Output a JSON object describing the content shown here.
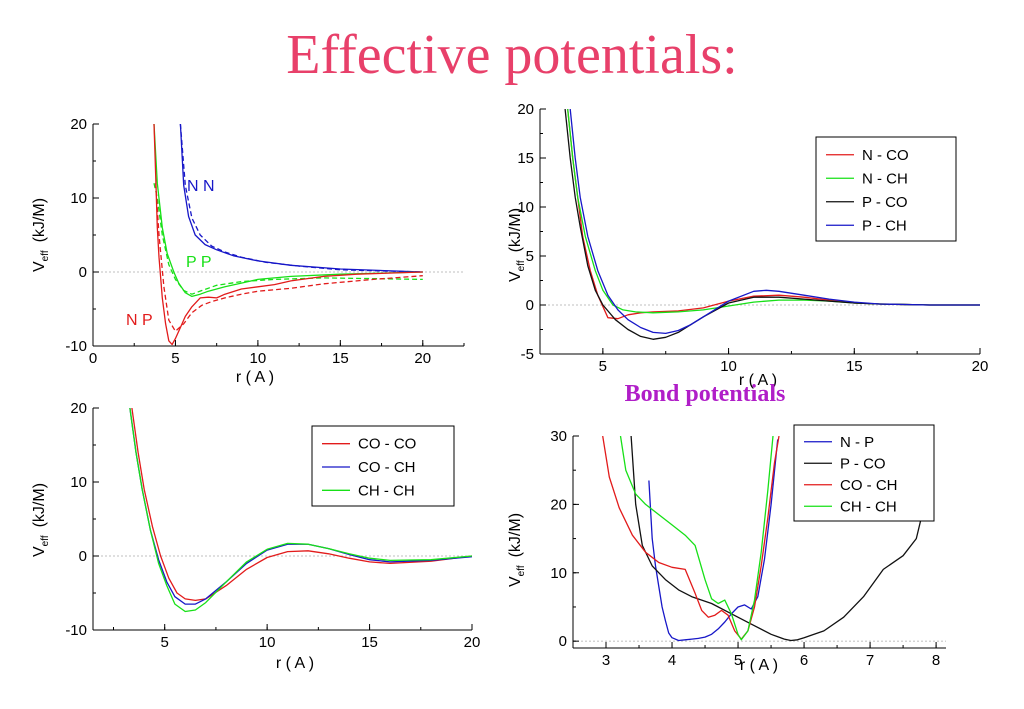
{
  "title": "Effective potentials:",
  "subtitle": "Bond potentials",
  "colors": {
    "title": "#e8406a",
    "subtitle": "#b01ec8",
    "red": "#e21b1b",
    "green": "#17e017",
    "blue": "#1717c8",
    "black": "#111111"
  },
  "chart_data": [
    {
      "type": "line",
      "xlabel": "r ( A )",
      "ylabel_main": "V",
      "ylabel_sub": "eff",
      "ylabel_unit": "(kJ/M)",
      "xlim": [
        0,
        22.5
      ],
      "ylim": [
        -10,
        20
      ],
      "xticks": [
        0,
        5,
        10,
        15,
        20
      ],
      "yticks": [
        -10,
        0,
        10,
        20
      ],
      "reference_line": 0,
      "series_labels": [
        "N N",
        "P P",
        "N P"
      ],
      "series": [
        {
          "label_index": 0,
          "color": "blue",
          "style": "solid",
          "x": [
            5.3,
            5.5,
            5.8,
            6.2,
            6.8,
            7.5,
            8.5,
            10,
            12,
            15,
            20
          ],
          "y": [
            20,
            11.7,
            7.5,
            5,
            3.7,
            3,
            2.2,
            1.5,
            0.9,
            0.4,
            0
          ]
        },
        {
          "label_index": 0,
          "color": "blue",
          "style": "dashed",
          "x": [
            5.3,
            5.6,
            6,
            6.5,
            7.2,
            8,
            9,
            10.5,
            12.5,
            15,
            20
          ],
          "y": [
            20,
            11.7,
            7.3,
            5,
            3.5,
            2.7,
            2,
            1.3,
            0.8,
            0.3,
            0
          ]
        },
        {
          "label_index": 1,
          "color": "green",
          "style": "solid",
          "x": [
            3.7,
            3.9,
            4.2,
            4.5,
            4.9,
            5.2,
            5.6,
            6,
            6.5,
            7,
            8,
            9,
            10,
            12,
            15,
            20
          ],
          "y": [
            20,
            12,
            6,
            2.5,
            0,
            -1.5,
            -2.8,
            -3.3,
            -3,
            -2.6,
            -2,
            -1.5,
            -1,
            -0.6,
            -0.3,
            0
          ]
        },
        {
          "label_index": 1,
          "color": "green",
          "style": "dashed",
          "x": [
            3.7,
            3.9,
            4.2,
            4.6,
            5,
            5.5,
            6,
            6.6,
            7.5,
            9,
            11,
            14,
            20
          ],
          "y": [
            12,
            10,
            5,
            1,
            -1,
            -2.5,
            -3,
            -2.5,
            -1.8,
            -1.3,
            -1,
            -0.8,
            -1
          ]
        },
        {
          "label_index": 2,
          "color": "red",
          "style": "solid",
          "x": [
            3.7,
            3.8,
            3.9,
            4,
            4.2,
            4.4,
            4.6,
            4.8,
            5,
            5.3,
            5.6,
            6,
            6.5,
            7,
            7.5,
            8,
            9,
            10,
            11,
            12,
            14,
            16,
            20
          ],
          "y": [
            20,
            13,
            6,
            2,
            -3.5,
            -7,
            -9.3,
            -9.8,
            -9,
            -7.5,
            -6,
            -4.7,
            -3.5,
            -3.4,
            -3.5,
            -3,
            -2.3,
            -2,
            -1.7,
            -1.2,
            -0.6,
            -0.3,
            0
          ]
        },
        {
          "label_index": 2,
          "color": "red",
          "style": "dashed",
          "x": [
            3.8,
            4,
            4.3,
            4.6,
            5,
            5.5,
            6,
            6.6,
            7.2,
            8,
            9,
            10,
            12,
            14,
            17,
            20
          ],
          "y": [
            12,
            5,
            -2,
            -6.5,
            -8,
            -7,
            -5.5,
            -4.5,
            -4,
            -3.5,
            -3,
            -2.6,
            -2.2,
            -1.6,
            -1,
            -0.5
          ]
        }
      ]
    },
    {
      "type": "line",
      "xlabel": "r ( A )",
      "ylabel_main": "V",
      "ylabel_sub": "eff",
      "ylabel_unit": "(kJ/M)",
      "xlim": [
        2.5,
        20
      ],
      "ylim": [
        -5,
        20
      ],
      "xticks": [
        5,
        10,
        15,
        20
      ],
      "yticks": [
        -5,
        0,
        5,
        10,
        15,
        20
      ],
      "reference_line": 0,
      "legend_position": "top-right",
      "series": [
        {
          "name": "N - CO",
          "color": "red",
          "x": [
            3.6,
            3.8,
            4,
            4.2,
            4.5,
            4.8,
            5.2,
            5.6,
            6,
            6.5,
            7,
            8,
            9,
            10,
            11,
            12,
            13,
            14,
            15,
            16,
            18,
            20
          ],
          "y": [
            20,
            15,
            11,
            7,
            3.5,
            1,
            -1.3,
            -1.4,
            -1,
            -0.8,
            -0.7,
            -0.6,
            -0.3,
            0.4,
            0.9,
            1,
            0.8,
            0.5,
            0.2,
            0.1,
            0,
            0
          ]
        },
        {
          "name": "N - CH",
          "color": "green",
          "x": [
            3.6,
            3.8,
            4,
            4.3,
            4.7,
            5,
            5.4,
            5.8,
            6.3,
            7,
            8,
            9,
            10,
            11,
            12,
            13,
            14,
            15,
            16,
            18,
            20
          ],
          "y": [
            20,
            15,
            11,
            7,
            3.5,
            1.5,
            0,
            -0.5,
            -0.7,
            -0.8,
            -0.7,
            -0.5,
            -0.1,
            0.3,
            0.5,
            0.5,
            0.4,
            0.2,
            0.1,
            0,
            0
          ]
        },
        {
          "name": "P - CO",
          "color": "black",
          "x": [
            3.5,
            3.7,
            3.9,
            4.1,
            4.4,
            4.7,
            5,
            5.5,
            6,
            6.5,
            7,
            7.5,
            8,
            8.5,
            9,
            9.5,
            10,
            11,
            12,
            13,
            14,
            15,
            16,
            18,
            20
          ],
          "y": [
            20,
            15,
            11,
            8,
            4,
            1.5,
            0,
            -1.5,
            -2.5,
            -3.2,
            -3.5,
            -3.3,
            -2.8,
            -2,
            -1.2,
            -0.5,
            0.2,
            0.8,
            0.8,
            0.6,
            0.4,
            0.2,
            0.1,
            0,
            0
          ]
        },
        {
          "name": "P - CH",
          "color": "blue",
          "x": [
            3.7,
            3.9,
            4.1,
            4.4,
            4.8,
            5.2,
            5.6,
            6,
            6.5,
            7,
            7.5,
            8,
            8.5,
            9,
            10,
            11,
            11.5,
            12,
            13,
            14,
            15,
            16,
            18,
            20
          ],
          "y": [
            20,
            15,
            11,
            7,
            3.5,
            1,
            -0.5,
            -1.5,
            -2.3,
            -2.8,
            -2.9,
            -2.6,
            -2,
            -1.2,
            0.4,
            1.4,
            1.5,
            1.4,
            1,
            0.6,
            0.3,
            0.1,
            0,
            0
          ]
        }
      ]
    },
    {
      "type": "line",
      "xlabel": "r ( A )",
      "ylabel_main": "V",
      "ylabel_sub": "eff",
      "ylabel_unit": "(kJ/M)",
      "xlim": [
        1.5,
        20
      ],
      "ylim": [
        -10,
        20
      ],
      "xticks": [
        5,
        10,
        15,
        20
      ],
      "yticks": [
        -10,
        0,
        10,
        20
      ],
      "reference_line": 0,
      "legend_position": "top-right",
      "series": [
        {
          "name": "CO - CO",
          "color": "red",
          "x": [
            3.4,
            3.7,
            4,
            4.4,
            4.8,
            5.2,
            5.6,
            6,
            6.5,
            7,
            8,
            9,
            10,
            11,
            12,
            13,
            14,
            15,
            16,
            18,
            20
          ],
          "y": [
            20,
            14,
            9,
            4,
            0,
            -3,
            -5,
            -5.8,
            -6,
            -5.8,
            -4,
            -1.8,
            -0.2,
            0.6,
            0.7,
            0.3,
            -0.3,
            -0.8,
            -1,
            -0.7,
            0
          ]
        },
        {
          "name": "CO - CH",
          "color": "blue",
          "x": [
            3.3,
            3.6,
            3.9,
            4.3,
            4.7,
            5.1,
            5.5,
            6,
            6.5,
            7,
            8,
            9,
            10,
            11,
            12,
            13,
            14,
            15,
            16,
            18,
            20
          ],
          "y": [
            20,
            14,
            9,
            3.5,
            -0.5,
            -3.5,
            -5.5,
            -6.5,
            -6.5,
            -5.8,
            -3.5,
            -1,
            0.8,
            1.6,
            1.6,
            1,
            0.2,
            -0.5,
            -0.8,
            -0.6,
            -0.1
          ]
        },
        {
          "name": "CH - CH",
          "color": "green",
          "x": [
            3.3,
            3.6,
            3.9,
            4.3,
            4.7,
            5.1,
            5.5,
            6,
            6.5,
            7,
            8,
            9,
            10,
            11,
            12,
            13,
            14,
            15,
            16,
            18,
            20
          ],
          "y": [
            20,
            14,
            9,
            3.5,
            -1,
            -4,
            -6.5,
            -7.5,
            -7.3,
            -6.3,
            -3.5,
            -0.8,
            0.9,
            1.7,
            1.6,
            1,
            0.3,
            -0.3,
            -0.6,
            -0.5,
            0
          ]
        }
      ]
    },
    {
      "type": "line",
      "xlabel": "r ( A )",
      "ylabel_main": "V",
      "ylabel_sub": "eff",
      "ylabel_unit": "(kJ/M)",
      "xlim": [
        2.5,
        8.15
      ],
      "ylim": [
        -1,
        30
      ],
      "xticks": [
        3,
        4,
        5,
        6,
        7,
        8
      ],
      "yticks": [
        0,
        10,
        20,
        30
      ],
      "reference_line": 0,
      "legend_position": "top-center",
      "series": [
        {
          "name": "N - P",
          "color": "blue",
          "x": [
            3.65,
            3.7,
            3.75,
            3.8,
            3.85,
            3.9,
            3.95,
            4,
            4.1,
            4.2,
            4.3,
            4.4,
            4.5,
            4.6,
            4.7,
            4.8,
            4.9,
            5,
            5.1,
            5.2,
            5.3,
            5.4,
            5.5,
            5.6
          ],
          "y": [
            23.5,
            15,
            11,
            8,
            5,
            3,
            1.2,
            0.5,
            0.1,
            0.2,
            0.3,
            0.4,
            0.6,
            1,
            1.8,
            2.8,
            4,
            5,
            5.3,
            4.7,
            6.5,
            12,
            20,
            29.5
          ]
        },
        {
          "name": "P - CO",
          "color": "black",
          "x": [
            3.38,
            3.45,
            3.55,
            3.7,
            3.9,
            4.1,
            4.3,
            4.6,
            4.9,
            5.2,
            5.5,
            5.7,
            5.8,
            5.9,
            6,
            6.3,
            6.6,
            6.9,
            7.2,
            7.5,
            7.7,
            7.8,
            7.9
          ],
          "y": [
            30,
            20,
            14,
            11,
            9,
            7.5,
            6.5,
            5.5,
            4,
            2.5,
            1,
            0.3,
            0.1,
            0.2,
            0.5,
            1.5,
            3.5,
            6.5,
            10.5,
            12.5,
            15,
            19,
            27.5
          ]
        },
        {
          "name": "CO - CH",
          "color": "red",
          "x": [
            2.95,
            3.05,
            3.2,
            3.4,
            3.6,
            3.8,
            4,
            4.2,
            4.35,
            4.45,
            4.55,
            4.65,
            4.75,
            4.85,
            4.95,
            5.05,
            5.15,
            5.25,
            5.35,
            5.45,
            5.55,
            5.62
          ],
          "y": [
            30,
            24,
            19.5,
            15.5,
            13,
            11.5,
            10.8,
            10.5,
            7,
            4.5,
            3.5,
            3.8,
            4.5,
            3.8,
            1.5,
            0.3,
            1.5,
            5,
            11,
            18,
            26,
            30
          ]
        },
        {
          "name": "CH - CH",
          "color": "green",
          "x": [
            3.22,
            3.3,
            3.45,
            3.6,
            3.8,
            4,
            4.2,
            4.35,
            4.5,
            4.6,
            4.7,
            4.8,
            4.9,
            5,
            5.05,
            5.15,
            5.25,
            5.35,
            5.45,
            5.53
          ],
          "y": [
            30,
            25,
            21.5,
            20,
            18.5,
            17,
            15.5,
            14,
            9,
            6.2,
            5.5,
            6,
            4,
            1,
            0.2,
            1.5,
            6,
            13,
            22,
            30
          ]
        }
      ]
    }
  ]
}
